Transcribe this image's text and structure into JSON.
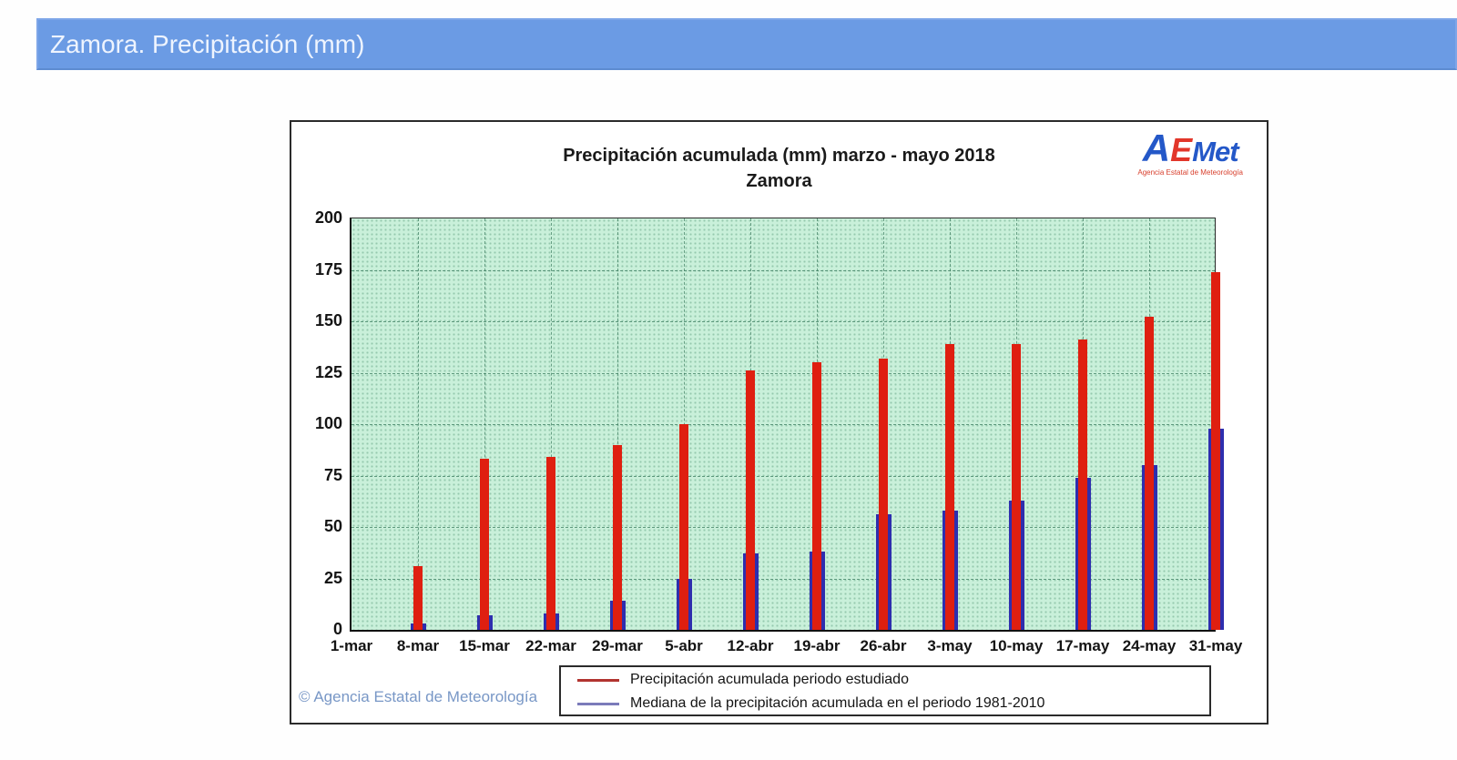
{
  "header": {
    "title": "Zamora. Precipitación (mm)",
    "bg_color": "#6b9be4"
  },
  "chart": {
    "title_line1": "Precipitación acumulada (mm) marzo - mayo 2018",
    "title_line2": "Zamora",
    "copyright_symbol": "©",
    "copyright_text": "Agencia Estatal de Meteorología",
    "logo": {
      "letter_a": "A",
      "letter_e": "E",
      "letters_met": "Met",
      "subtitle": "Agencia Estatal de Meteorología"
    }
  },
  "chart_data": {
    "type": "bar",
    "title": "Precipitación acumulada (mm) marzo - mayo 2018",
    "subtitle": "Zamora",
    "xlabel": "",
    "ylabel": "Precipitación (mm)",
    "ylim": [
      0,
      200
    ],
    "yticks": [
      0,
      25,
      50,
      75,
      100,
      125,
      150,
      175,
      200
    ],
    "grid": true,
    "legend_position": "bottom",
    "plot_bg": "#c9f0da",
    "categories": [
      "1-mar",
      "8-mar",
      "15-mar",
      "22-mar",
      "29-mar",
      "5-abr",
      "12-abr",
      "19-abr",
      "26-abr",
      "3-may",
      "10-may",
      "17-may",
      "24-may",
      "31-may"
    ],
    "series": [
      {
        "name": "Precipitación acumulada periodo estudiado",
        "color": "#df1f10",
        "legend_color": "#b23430",
        "values": [
          0,
          31,
          83,
          84,
          90,
          100,
          126,
          130,
          132,
          139,
          139,
          141,
          152,
          174
        ]
      },
      {
        "name": "Mediana de la precipitación acumulada en el periodo 1981-2010",
        "color": "#2e2eae",
        "legend_color": "#7b7bba",
        "values": [
          0,
          3,
          7,
          8,
          14,
          25,
          37,
          38,
          56,
          58,
          63,
          74,
          80,
          98
        ]
      }
    ]
  }
}
